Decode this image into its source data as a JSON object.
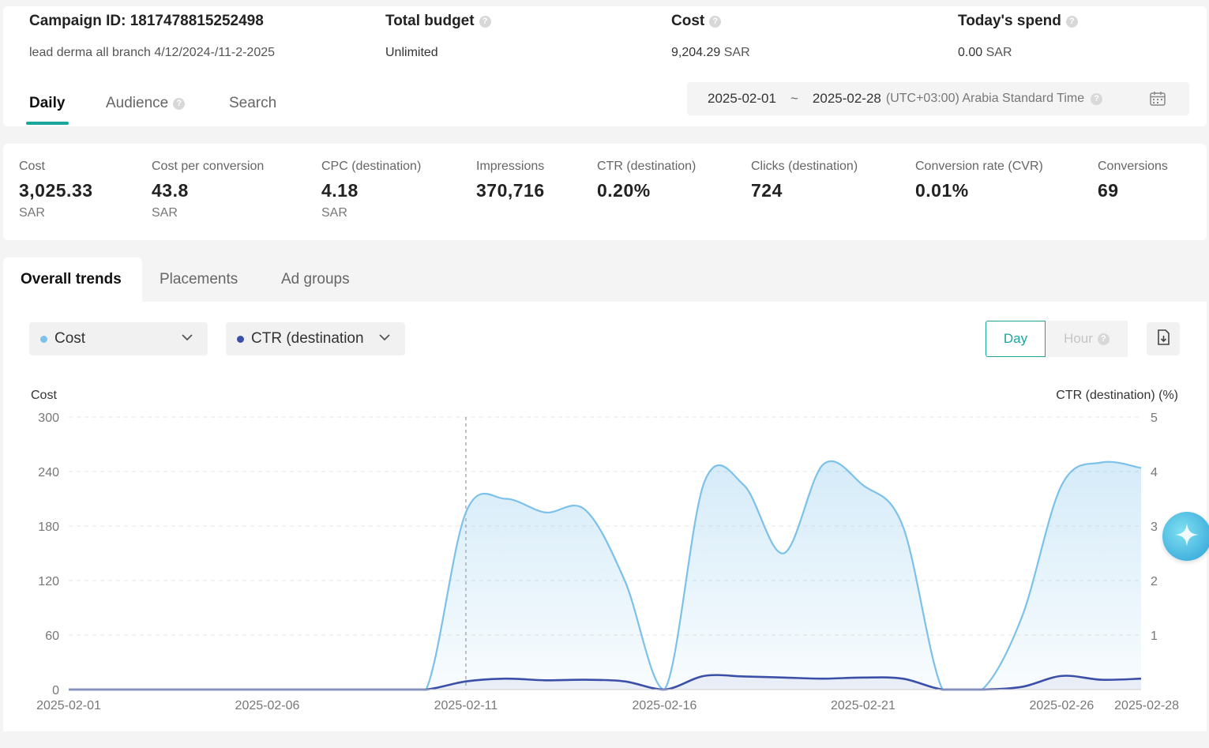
{
  "header": {
    "campaign_id_label": "Campaign ID: 1817478815252498",
    "campaign_name": "lead derma all branch 4/12/2024-/11-2-2025",
    "total_budget_label": "Total budget",
    "total_budget_value": "Unlimited",
    "cost_label": "Cost",
    "cost_value": "9,204.29",
    "cost_unit": "SAR",
    "todays_spend_label": "Today's spend",
    "todays_spend_value": "0.00",
    "todays_spend_unit": "SAR",
    "help_glyph": "?"
  },
  "tabs": [
    {
      "label": "Daily",
      "active": true
    },
    {
      "label": "Audience",
      "active": false
    },
    {
      "label": "Search",
      "active": false
    }
  ],
  "date_range": {
    "start": "2025-02-01",
    "separator": "~",
    "end": "2025-02-28",
    "timezone": "(UTC+03:00) Arabia Standard Time"
  },
  "metrics": [
    {
      "label": "Cost",
      "value": "3,025.33",
      "unit": "SAR"
    },
    {
      "label": "Cost per conversion",
      "value": "43.8",
      "unit": "SAR"
    },
    {
      "label": "CPC (destination)",
      "value": "4.18",
      "unit": "SAR"
    },
    {
      "label": "Impressions",
      "value": "370,716",
      "unit": ""
    },
    {
      "label": "CTR (destination)",
      "value": "0.20%",
      "unit": ""
    },
    {
      "label": "Clicks (destination)",
      "value": "724",
      "unit": ""
    },
    {
      "label": "Conversion rate (CVR)",
      "value": "0.01%",
      "unit": ""
    },
    {
      "label": "Conversions",
      "value": "69",
      "unit": ""
    }
  ],
  "trend_tabs": [
    {
      "label": "Overall trends",
      "active": true
    },
    {
      "label": "Placements",
      "active": false
    },
    {
      "label": "Ad groups",
      "active": false
    }
  ],
  "selectors": {
    "primary": {
      "label": "Cost",
      "color": "#7cc1ea"
    },
    "secondary": {
      "label": "CTR (destination",
      "color": "#3b4fa8"
    }
  },
  "granularity": {
    "day_label": "Day",
    "hour_label": "Hour"
  },
  "icons": {
    "calendar": "calendar-icon",
    "export": "export-icon",
    "chevron": "chevron-down-icon",
    "assistant": "sparkle-icon"
  },
  "chart_data": {
    "type": "area",
    "left_axis_label": "Cost",
    "right_axis_label": "CTR (destination) (%)",
    "left_ylim": [
      0,
      300
    ],
    "left_ticks": [
      "0",
      "60",
      "120",
      "180",
      "240",
      "300"
    ],
    "right_ylim": [
      0,
      5
    ],
    "right_ticks": [
      "",
      "1",
      "2",
      "3",
      "4",
      "5"
    ],
    "x_tick_labels": [
      "2025-02-01",
      "2025-02-06",
      "2025-02-11",
      "2025-02-16",
      "2025-02-21",
      "2025-02-26",
      "2025-02-28"
    ],
    "x_tick_days": [
      1,
      6,
      11,
      16,
      21,
      26,
      28
    ],
    "hover_day": 11,
    "x": [
      "2025-02-01",
      "2025-02-02",
      "2025-02-03",
      "2025-02-04",
      "2025-02-05",
      "2025-02-06",
      "2025-02-07",
      "2025-02-08",
      "2025-02-09",
      "2025-02-10",
      "2025-02-11",
      "2025-02-12",
      "2025-02-13",
      "2025-02-14",
      "2025-02-15",
      "2025-02-16",
      "2025-02-17",
      "2025-02-18",
      "2025-02-19",
      "2025-02-20",
      "2025-02-21",
      "2025-02-22",
      "2025-02-23",
      "2025-02-24",
      "2025-02-25",
      "2025-02-26",
      "2025-02-27",
      "2025-02-28"
    ],
    "series": [
      {
        "name": "Cost",
        "axis": "left",
        "color": "#7cc1ea",
        "values": [
          0,
          0,
          0,
          0,
          0,
          0,
          0,
          0,
          0,
          0,
          195,
          210,
          195,
          198,
          120,
          0,
          228,
          225,
          150,
          248,
          225,
          180,
          0,
          0,
          80,
          225,
          250,
          244
        ]
      },
      {
        "name": "CTR (destination)",
        "axis": "right",
        "color": "#3b4fa8",
        "values": [
          0,
          0,
          0,
          0,
          0,
          0,
          0,
          0,
          0,
          0,
          0.15,
          0.2,
          0.17,
          0.18,
          0.15,
          0,
          0.25,
          0.24,
          0.22,
          0.2,
          0.22,
          0.2,
          0,
          0,
          0.05,
          0.25,
          0.18,
          0.2
        ]
      }
    ]
  }
}
